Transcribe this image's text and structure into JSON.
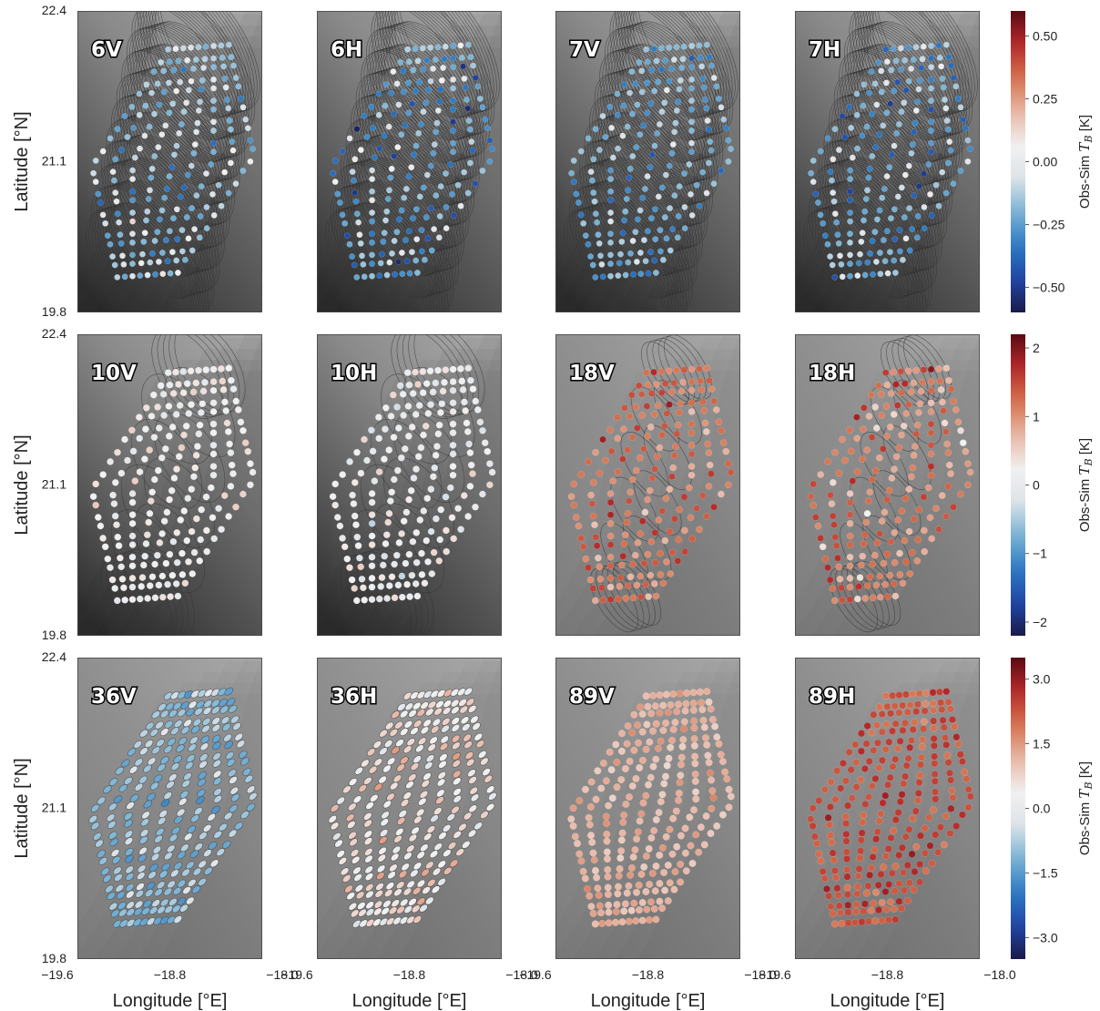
{
  "chart_data": {
    "type": "scatter",
    "description_grid": {
      "rows": 3,
      "cols": 4
    },
    "xlabel": "Longitude [°E]",
    "ylabel": "Latitude [°N]",
    "xlim": [
      -19.6,
      -18.0
    ],
    "ylim": [
      19.8,
      22.4
    ],
    "xticks": [
      "−19.6",
      "−18.8",
      "−18.0"
    ],
    "yticks": [
      "19.8",
      "21.1",
      "22.4"
    ],
    "colorbar_label": "Obs-Sim",
    "colorbar_math": "T",
    "colorbar_math_sub": "B",
    "colorbar_unit": "[K]",
    "panels": [
      {
        "label": "6V",
        "row": 0,
        "mean": -0.15,
        "spread": 0.18,
        "footprint": "large",
        "background": "dark"
      },
      {
        "label": "6H",
        "row": 0,
        "mean": -0.22,
        "spread": 0.22,
        "footprint": "large",
        "background": "dark"
      },
      {
        "label": "7V",
        "row": 0,
        "mean": -0.2,
        "spread": 0.15,
        "footprint": "large",
        "background": "dark"
      },
      {
        "label": "7H",
        "row": 0,
        "mean": -0.22,
        "spread": 0.2,
        "footprint": "large",
        "background": "dark"
      },
      {
        "label": "10V",
        "row": 1,
        "mean": 0.15,
        "spread": 0.3,
        "footprint": "medium",
        "background": "dark"
      },
      {
        "label": "10H",
        "row": 1,
        "mean": 0.1,
        "spread": 0.35,
        "footprint": "medium",
        "background": "dark"
      },
      {
        "label": "18V",
        "row": 1,
        "mean": 1.2,
        "spread": 0.45,
        "footprint": "small",
        "background": "light"
      },
      {
        "label": "18H",
        "row": 1,
        "mean": 1.1,
        "spread": 0.6,
        "footprint": "small",
        "background": "light"
      },
      {
        "label": "36V",
        "row": 2,
        "mean": -0.9,
        "spread": 0.6,
        "footprint": "tiny",
        "background": "light"
      },
      {
        "label": "36H",
        "row": 2,
        "mean": 0.5,
        "spread": 0.7,
        "footprint": "tiny",
        "background": "light"
      },
      {
        "label": "89V",
        "row": 2,
        "mean": 1.2,
        "spread": 0.35,
        "footprint": "none",
        "background": "light"
      },
      {
        "label": "89H",
        "row": 2,
        "mean": 2.3,
        "spread": 0.5,
        "footprint": "none",
        "background": "light"
      }
    ],
    "colorbars": [
      {
        "row": 0,
        "vmin": -0.6,
        "vmax": 0.6,
        "ticks": [
          0.5,
          0.25,
          0.0,
          -0.25,
          -0.5
        ],
        "tick_labels": [
          "0.50",
          "0.25",
          "0.00",
          "−0.25",
          "−0.50"
        ]
      },
      {
        "row": 1,
        "vmin": -2.2,
        "vmax": 2.2,
        "ticks": [
          2,
          1,
          0,
          -1,
          -2
        ],
        "tick_labels": [
          "2",
          "1",
          "0",
          "−1",
          "−2"
        ]
      },
      {
        "row": 2,
        "vmin": -3.5,
        "vmax": 3.5,
        "ticks": [
          3.0,
          1.5,
          0.0,
          -1.5,
          -3.0
        ],
        "tick_labels": [
          "3.0",
          "1.5",
          "0.0",
          "−1.5",
          "−3.0"
        ]
      }
    ],
    "colormap_stops": [
      "#1a1a4a",
      "#2146a6",
      "#2c7bc4",
      "#7ab3d4",
      "#dde3e8",
      "#f1f1f1",
      "#e8b6a4",
      "#d5724f",
      "#b52a2a",
      "#5a0a14"
    ]
  }
}
